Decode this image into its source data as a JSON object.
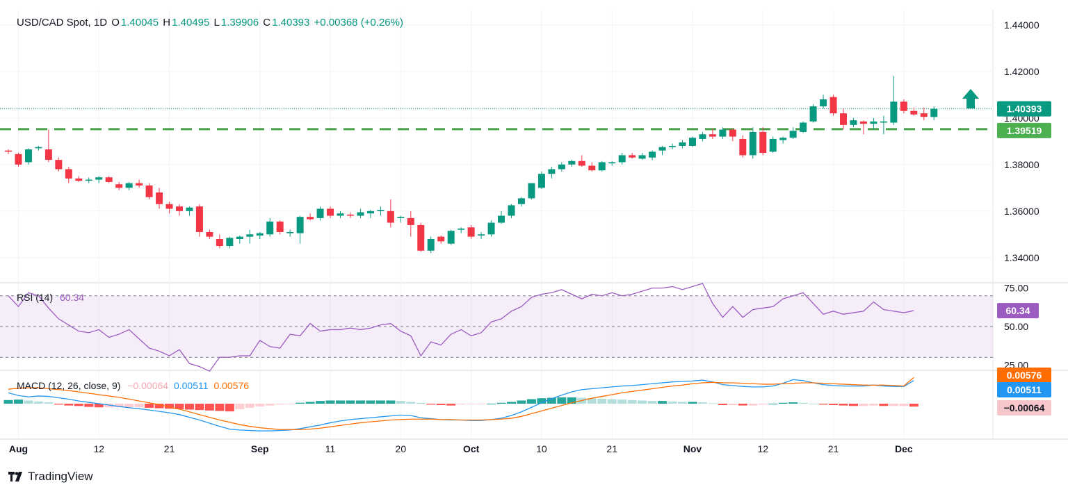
{
  "header": {
    "symbol": "USD/CAD Spot, 1D",
    "open_label": "O",
    "open": "1.40045",
    "high_label": "H",
    "high": "1.40495",
    "low_label": "L",
    "low": "1.39906",
    "close_label": "C",
    "close": "1.40393",
    "change": "+0.00368 (+0.26%)"
  },
  "brand": {
    "name": "TradingView"
  },
  "colors": {
    "up": "#089981",
    "down": "#f23645",
    "support": "#43a047",
    "rsi": "#9c5bc1",
    "macd": "#2196f3",
    "signal": "#ff6d00"
  },
  "chart_data": [
    {
      "type": "candlestick",
      "title": "USD/CAD Spot, 1D",
      "x_tick_labels": [
        "Aug",
        "12",
        "21",
        "Sep",
        "11",
        "20",
        "Oct",
        "10",
        "21",
        "Nov",
        "12",
        "21",
        "Dec"
      ],
      "x_tick_index": [
        1,
        9,
        16,
        25,
        32,
        39,
        46,
        53,
        60,
        68,
        75,
        82,
        89
      ],
      "y_tick_labels": [
        "1.44000",
        "1.42000",
        "1.40000",
        "1.38000",
        "1.36000",
        "1.34000"
      ],
      "ylim": [
        1.3295,
        1.4465
      ],
      "last_price_label": "1.40393",
      "support_label": "1.39519",
      "support_level": 1.3952,
      "arrow": "up",
      "candles": [
        [
          1.386,
          1.3865,
          1.3845,
          1.3855
        ],
        [
          1.3845,
          1.385,
          1.379,
          1.38
        ],
        [
          1.381,
          1.387,
          1.38,
          1.3865
        ],
        [
          1.387,
          1.388,
          1.386,
          1.3875
        ],
        [
          1.3865,
          1.395,
          1.381,
          1.382
        ],
        [
          1.382,
          1.383,
          1.377,
          1.378
        ],
        [
          1.378,
          1.379,
          1.372,
          1.374
        ],
        [
          1.374,
          1.375,
          1.3725,
          1.373
        ],
        [
          1.3735,
          1.3745,
          1.372,
          1.3735
        ],
        [
          1.3735,
          1.375,
          1.372,
          1.3745
        ],
        [
          1.3745,
          1.375,
          1.372,
          1.3725
        ],
        [
          1.3715,
          1.3725,
          1.369,
          1.37
        ],
        [
          1.37,
          1.3725,
          1.369,
          1.372
        ],
        [
          1.372,
          1.3735,
          1.37,
          1.371
        ],
        [
          1.371,
          1.372,
          1.365,
          1.366
        ],
        [
          1.368,
          1.37,
          1.361,
          1.363
        ],
        [
          1.363,
          1.364,
          1.359,
          1.361
        ],
        [
          1.362,
          1.363,
          1.358,
          1.36
        ],
        [
          1.36,
          1.362,
          1.358,
          1.3615
        ],
        [
          1.362,
          1.363,
          1.349,
          1.351
        ],
        [
          1.351,
          1.352,
          1.348,
          1.349
        ],
        [
          1.348,
          1.35,
          1.344,
          1.345
        ],
        [
          1.345,
          1.349,
          1.344,
          1.3485
        ],
        [
          1.348,
          1.3495,
          1.346,
          1.349
        ],
        [
          1.349,
          1.352,
          1.346,
          1.35
        ],
        [
          1.3495,
          1.351,
          1.348,
          1.3505
        ],
        [
          1.35,
          1.357,
          1.349,
          1.3555
        ],
        [
          1.3555,
          1.356,
          1.35,
          1.351
        ],
        [
          1.3505,
          1.352,
          1.349,
          1.351
        ],
        [
          1.3505,
          1.358,
          1.346,
          1.3575
        ],
        [
          1.3575,
          1.359,
          1.356,
          1.3565
        ],
        [
          1.357,
          1.362,
          1.356,
          1.361
        ],
        [
          1.361,
          1.362,
          1.357,
          1.358
        ],
        [
          1.358,
          1.36,
          1.357,
          1.359
        ],
        [
          1.3585,
          1.3595,
          1.357,
          1.358
        ],
        [
          1.358,
          1.361,
          1.357,
          1.3595
        ],
        [
          1.359,
          1.3605,
          1.357,
          1.36
        ],
        [
          1.36,
          1.362,
          1.358,
          1.3605
        ],
        [
          1.36,
          1.365,
          1.353,
          1.355
        ],
        [
          1.357,
          1.358,
          1.355,
          1.3575
        ],
        [
          1.357,
          1.36,
          1.349,
          1.354
        ],
        [
          1.354,
          1.355,
          1.3425,
          1.343
        ],
        [
          1.343,
          1.349,
          1.342,
          1.348
        ],
        [
          1.349,
          1.3495,
          1.346,
          1.347
        ],
        [
          1.346,
          1.352,
          1.3455,
          1.3515
        ],
        [
          1.352,
          1.353,
          1.3505,
          1.3525
        ],
        [
          1.353,
          1.354,
          1.348,
          1.349
        ],
        [
          1.3495,
          1.351,
          1.348,
          1.35
        ],
        [
          1.35,
          1.356,
          1.349,
          1.355
        ],
        [
          1.355,
          1.36,
          1.3545,
          1.358
        ],
        [
          1.358,
          1.363,
          1.357,
          1.3625
        ],
        [
          1.363,
          1.366,
          1.362,
          1.3655
        ],
        [
          1.3655,
          1.372,
          1.365,
          1.372
        ],
        [
          1.37,
          1.377,
          1.3695,
          1.376
        ],
        [
          1.376,
          1.379,
          1.374,
          1.378
        ],
        [
          1.378,
          1.381,
          1.377,
          1.38
        ],
        [
          1.38,
          1.382,
          1.379,
          1.3815
        ],
        [
          1.3815,
          1.384,
          1.379,
          1.3795
        ],
        [
          1.3795,
          1.381,
          1.377,
          1.3775
        ],
        [
          1.3775,
          1.3815,
          1.377,
          1.381
        ],
        [
          1.3805,
          1.3815,
          1.3795,
          1.381
        ],
        [
          1.381,
          1.385,
          1.38,
          1.384
        ],
        [
          1.384,
          1.385,
          1.3825,
          1.383
        ],
        [
          1.3825,
          1.385,
          1.382,
          1.384
        ],
        [
          1.383,
          1.386,
          1.382,
          1.3855
        ],
        [
          1.386,
          1.388,
          1.384,
          1.3875
        ],
        [
          1.3875,
          1.389,
          1.3865,
          1.388
        ],
        [
          1.388,
          1.3905,
          1.387,
          1.3895
        ],
        [
          1.388,
          1.392,
          1.3875,
          1.3915
        ],
        [
          1.391,
          1.394,
          1.39,
          1.393
        ],
        [
          1.393,
          1.3955,
          1.391,
          1.392
        ],
        [
          1.392,
          1.396,
          1.391,
          1.395
        ],
        [
          1.395,
          1.3955,
          1.39,
          1.392
        ],
        [
          1.391,
          1.3925,
          1.383,
          1.384
        ],
        [
          1.384,
          1.396,
          1.3825,
          1.394
        ],
        [
          1.394,
          1.396,
          1.384,
          1.385
        ],
        [
          1.3855,
          1.392,
          1.385,
          1.391
        ],
        [
          1.3905,
          1.392,
          1.389,
          1.3915
        ],
        [
          1.3915,
          1.396,
          1.391,
          1.3945
        ],
        [
          1.394,
          1.3985,
          1.3935,
          1.398
        ],
        [
          1.3985,
          1.406,
          1.398,
          1.405
        ],
        [
          1.405,
          1.41,
          1.404,
          1.408
        ],
        [
          1.409,
          1.41,
          1.401,
          1.402
        ],
        [
          1.402,
          1.404,
          1.395,
          1.397
        ],
        [
          1.397,
          1.4,
          1.396,
          1.399
        ],
        [
          1.3985,
          1.399,
          1.393,
          1.3975
        ],
        [
          1.3975,
          1.4,
          1.395,
          1.3985
        ],
        [
          1.398,
          1.401,
          1.393,
          1.3985
        ],
        [
          1.398,
          1.418,
          1.397,
          1.407
        ],
        [
          1.407,
          1.408,
          1.402,
          1.403
        ],
        [
          1.403,
          1.4045,
          1.401,
          1.4015
        ],
        [
          1.402,
          1.4045,
          1.399,
          1.4005
        ],
        [
          1.40045,
          1.40495,
          1.39906,
          1.40393
        ]
      ]
    },
    {
      "type": "line",
      "title": "RSI (14)",
      "last_label": "60.34",
      "y_tick_labels": [
        "75.00",
        "50.00",
        "25.00"
      ],
      "levels": [
        70,
        50,
        30
      ],
      "ylim": [
        22,
        78
      ],
      "values": [
        70,
        63,
        72,
        70,
        62,
        55,
        51,
        47,
        46,
        48,
        43,
        45,
        48,
        42,
        36,
        34,
        31,
        35,
        26,
        24,
        21,
        30,
        30,
        31,
        31,
        41,
        37,
        36,
        45,
        44,
        52,
        47,
        48,
        48,
        49,
        48,
        49,
        51,
        52,
        47,
        44,
        31,
        40,
        38,
        45,
        48,
        44,
        46,
        53,
        55,
        60,
        63,
        69,
        71,
        72,
        74,
        71,
        68,
        71,
        70,
        72,
        70,
        71,
        73,
        75,
        75,
        76,
        74,
        76,
        78,
        65,
        56,
        63,
        56,
        61,
        62,
        63,
        68,
        70,
        72,
        65,
        58,
        60,
        58,
        59,
        60,
        66,
        61,
        60,
        59,
        60.34
      ]
    },
    {
      "type": "macd",
      "title": "MACD (12, 26, close, 9)",
      "hist_label": "−0.00064",
      "macd_label": "0.00511",
      "signal_label": "0.00576",
      "ylim": [
        -0.0075,
        0.0072
      ],
      "macd": [
        0.0024,
        0.0018,
        0.0015,
        0.0017,
        0.0016,
        0.0013,
        0.001,
        0.0006,
        0.0003,
        0.0,
        -0.0003,
        -0.0006,
        -0.0009,
        -0.0011,
        -0.0014,
        -0.0017,
        -0.002,
        -0.0024,
        -0.003,
        -0.0036,
        -0.0043,
        -0.005,
        -0.0056,
        -0.0058,
        -0.0059,
        -0.006,
        -0.006,
        -0.0059,
        -0.0058,
        -0.0055,
        -0.0051,
        -0.0047,
        -0.0042,
        -0.0038,
        -0.0035,
        -0.0033,
        -0.0031,
        -0.0029,
        -0.0027,
        -0.0025,
        -0.0026,
        -0.0031,
        -0.0033,
        -0.0035,
        -0.0036,
        -0.0036,
        -0.0037,
        -0.0037,
        -0.0035,
        -0.0032,
        -0.0026,
        -0.0018,
        -0.0008,
        0.0002,
        0.0011,
        0.0019,
        0.0026,
        0.0031,
        0.0033,
        0.0035,
        0.0037,
        0.0039,
        0.004,
        0.0042,
        0.0044,
        0.0046,
        0.0048,
        0.0049,
        0.005,
        0.0052,
        0.0048,
        0.0042,
        0.004,
        0.0038,
        0.0037,
        0.0037,
        0.0039,
        0.0045,
        0.0053,
        0.0051,
        0.0046,
        0.0042,
        0.004,
        0.0039,
        0.0039,
        0.0039,
        0.0041,
        0.0039,
        0.0038,
        0.0038,
        0.00511
      ],
      "signal": [
        0.0032,
        0.0034,
        0.0035,
        0.0035,
        0.0033,
        0.0031,
        0.0029,
        0.0026,
        0.0023,
        0.002,
        0.0017,
        0.0014,
        0.001,
        0.0006,
        0.0002,
        -0.0002,
        -0.0007,
        -0.0012,
        -0.0018,
        -0.0024,
        -0.003,
        -0.0036,
        -0.0041,
        -0.0046,
        -0.005,
        -0.0053,
        -0.0055,
        -0.0057,
        -0.0057,
        -0.0057,
        -0.0056,
        -0.0054,
        -0.0051,
        -0.0048,
        -0.0045,
        -0.0042,
        -0.004,
        -0.0038,
        -0.0036,
        -0.0035,
        -0.0034,
        -0.0034,
        -0.0034,
        -0.0035,
        -0.0035,
        -0.0036,
        -0.0036,
        -0.0036,
        -0.0035,
        -0.0034,
        -0.0032,
        -0.0028,
        -0.0022,
        -0.0016,
        -0.001,
        -0.0004,
        0.0002,
        0.0007,
        0.0012,
        0.0016,
        0.002,
        0.0024,
        0.0027,
        0.003,
        0.0033,
        0.0036,
        0.0039,
        0.0041,
        0.0044,
        0.0046,
        0.0047,
        0.0046,
        0.0046,
        0.0045,
        0.0044,
        0.0043,
        0.0043,
        0.0044,
        0.0045,
        0.0046,
        0.0046,
        0.0045,
        0.0044,
        0.0043,
        0.0042,
        0.0041,
        0.0041,
        0.0041,
        0.004,
        0.0039,
        0.00576
      ],
      "hist": [
        0.0008,
        0.0009,
        0.0007,
        0.0005,
        0.0003,
        -0.0002,
        -0.0004,
        -0.0005,
        -0.0007,
        -0.0008,
        -0.0008,
        -0.0008,
        -0.0008,
        -0.0008,
        -0.0009,
        -0.001,
        -0.0011,
        -0.0012,
        -0.0013,
        -0.0014,
        -0.0015,
        -0.0016,
        -0.0017,
        -0.0012,
        -0.0009,
        -0.0006,
        -0.0004,
        -0.0002,
        -0.0001,
        0.0002,
        0.0004,
        0.0006,
        0.0007,
        0.0007,
        0.0007,
        0.0007,
        0.0007,
        0.0007,
        0.0007,
        0.0006,
        0.0004,
        0.0002,
        -0.0002,
        -0.0003,
        -0.0004,
        -0.0002,
        -0.0001,
        -0.0001,
        0.0,
        0.0002,
        0.0004,
        0.0007,
        0.001,
        0.0012,
        0.0013,
        0.0014,
        0.0014,
        0.0013,
        0.0012,
        0.0011,
        0.001,
        0.0009,
        0.0008,
        0.0007,
        0.0006,
        0.0006,
        0.0005,
        0.0004,
        0.0004,
        0.0003,
        0.0001,
        -0.0003,
        -0.0003,
        -0.0004,
        -0.0004,
        -0.0002,
        0.0,
        0.0002,
        0.0003,
        0.0002,
        0.0,
        -0.0002,
        -0.0003,
        -0.0004,
        -0.0005,
        -0.0005,
        -0.0004,
        -0.0005,
        -0.0005,
        -0.0005,
        -0.00064
      ]
    }
  ]
}
